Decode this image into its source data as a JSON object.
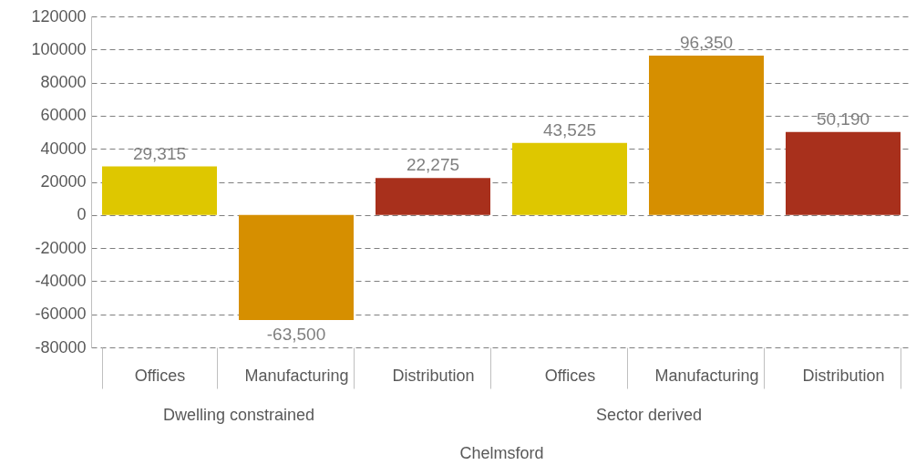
{
  "chart_data": {
    "type": "bar",
    "categories": [
      "Offices",
      "Manufacturing",
      "Distribution",
      "Offices",
      "Manufacturing",
      "Distribution"
    ],
    "values": [
      29315,
      -63500,
      22275,
      43525,
      96350,
      50190
    ],
    "colors": [
      "#dec700",
      "#d68f00",
      "#a8301c",
      "#dec700",
      "#d68f00",
      "#a8301c"
    ],
    "xlabel": "Chelmsford",
    "annotations": [
      "Dwelling constrained",
      "Sector derived"
    ],
    "ylim": [
      -80000,
      120000
    ],
    "yticks": [
      -80000,
      -60000,
      -40000,
      -20000,
      0,
      20000,
      40000,
      60000,
      80000,
      100000,
      120000
    ],
    "value_labels": [
      "29,315",
      "-63,500",
      "22,275",
      "43,525",
      "96,350",
      "50,190"
    ],
    "grid": "y"
  }
}
